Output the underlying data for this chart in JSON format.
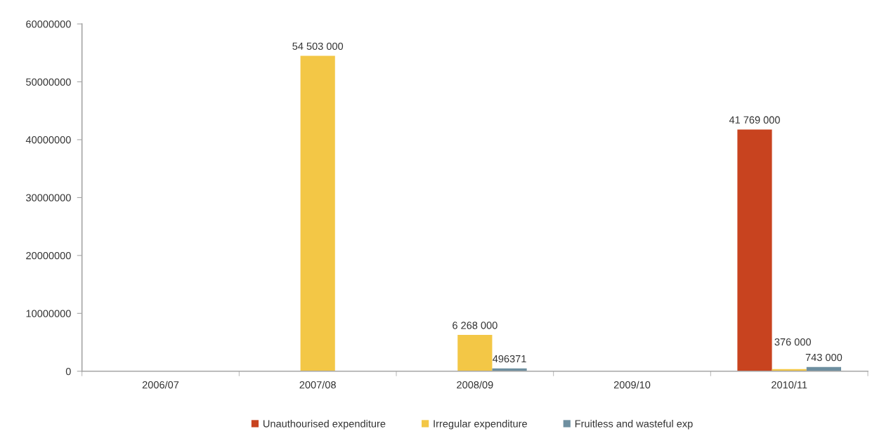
{
  "chart_data": {
    "type": "bar",
    "categories": [
      "2006/07",
      "2007/08",
      "2008/09",
      "2009/10",
      "2010/11"
    ],
    "series": [
      {
        "name": "Unauthourised expenditure",
        "color": "#c8431f",
        "values": [
          null,
          null,
          null,
          null,
          41769000
        ],
        "value_labels": [
          null,
          null,
          null,
          null,
          "41 769 000"
        ]
      },
      {
        "name": "Irregular expenditure",
        "color": "#f3c746",
        "values": [
          null,
          54503000,
          6268000,
          null,
          376000
        ],
        "value_labels": [
          null,
          "54 503 000",
          "6 268 000",
          null,
          "376 000"
        ]
      },
      {
        "name": "Fruitless and wasteful exp",
        "color": "#6e8fa0",
        "values": [
          null,
          null,
          496371,
          null,
          743000
        ],
        "value_labels": [
          null,
          null,
          "496371",
          null,
          "743 000"
        ]
      }
    ],
    "ylim": [
      0,
      60000000
    ],
    "yticks": [
      0,
      10000000,
      20000000,
      30000000,
      40000000,
      50000000,
      60000000
    ],
    "legend": "bottom"
  }
}
